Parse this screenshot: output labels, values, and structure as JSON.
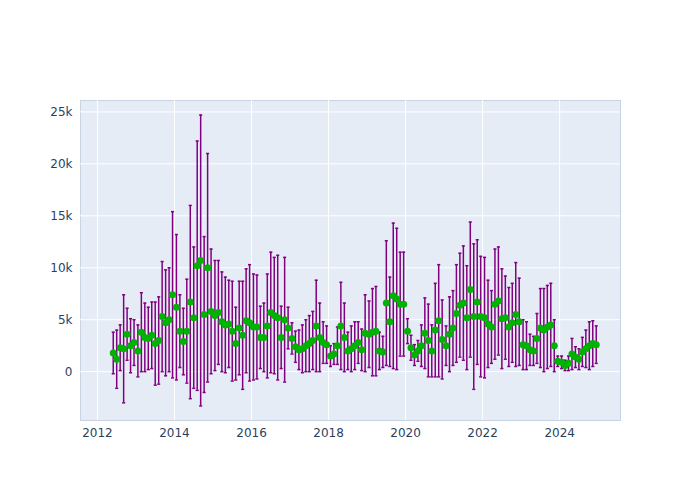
{
  "chart_data": {
    "type": "scatter",
    "xlim": [
      2011.56,
      2025.58
    ],
    "xticks": [
      2012,
      2014,
      2016,
      2018,
      2020,
      2022,
      2024
    ],
    "ylim": [
      -4700,
      26100
    ],
    "yticks": [
      0,
      {
        "value": 5000,
        "label": "5k"
      },
      {
        "value": 10000,
        "label": "10k"
      },
      {
        "value": 15000,
        "label": "15k"
      },
      {
        "value": 20000,
        "label": "20k"
      },
      {
        "value": 25000,
        "label": "25k"
      }
    ],
    "grid": true,
    "series": [
      {
        "color": "#00b300",
        "marker": "circle",
        "x": [
          2012.41,
          2012.5,
          2012.59,
          2012.68,
          2012.77,
          2012.86,
          2012.95,
          2013.05,
          2013.14,
          2013.23,
          2013.32,
          2013.41,
          2013.5,
          2013.59,
          2013.68,
          2013.77,
          2013.86,
          2013.95,
          2014.05,
          2014.14,
          2014.23,
          2014.32,
          2014.41,
          2014.5,
          2014.59,
          2014.68,
          2014.77,
          2014.86,
          2014.95,
          2015.05,
          2015.14,
          2015.23,
          2015.32,
          2015.41,
          2015.5,
          2015.59,
          2015.68,
          2015.77,
          2015.86,
          2015.95,
          2016.05,
          2016.14,
          2016.23,
          2016.32,
          2016.41,
          2016.5,
          2016.59,
          2016.68,
          2016.77,
          2016.86,
          2016.95,
          2017.05,
          2017.14,
          2017.23,
          2017.32,
          2017.41,
          2017.5,
          2017.59,
          2017.68,
          2017.77,
          2017.86,
          2017.95,
          2018.05,
          2018.14,
          2018.23,
          2018.32,
          2018.41,
          2018.5,
          2018.59,
          2018.68,
          2018.77,
          2018.86,
          2018.95,
          2019.05,
          2019.14,
          2019.23,
          2019.32,
          2019.41,
          2019.5,
          2019.59,
          2019.68,
          2019.77,
          2019.86,
          2019.95,
          2020.05,
          2020.14,
          2020.23,
          2020.32,
          2020.41,
          2020.5,
          2020.59,
          2020.68,
          2020.77,
          2020.86,
          2020.95,
          2021.05,
          2021.14,
          2021.23,
          2021.32,
          2021.41,
          2021.5,
          2021.59,
          2021.68,
          2021.77,
          2021.86,
          2021.95,
          2022.05,
          2022.14,
          2022.23,
          2022.32,
          2022.41,
          2022.5,
          2022.59,
          2022.68,
          2022.77,
          2022.86,
          2022.95,
          2023.05,
          2023.14,
          2023.23,
          2023.32,
          2023.41,
          2023.5,
          2023.59,
          2023.68,
          2023.77,
          2023.86,
          2023.95,
          2024.05,
          2024.14,
          2024.23,
          2024.32,
          2024.41,
          2024.5,
          2024.59,
          2024.68,
          2024.77,
          2024.86,
          2024.95
        ],
        "values": [
          1800,
          1200,
          2300,
          2200,
          3600,
          2500,
          2800,
          2000,
          3800,
          3300,
          3200,
          3500,
          2700,
          3000,
          5300,
          4700,
          5000,
          7400,
          6200,
          3900,
          2900,
          3900,
          6700,
          5200,
          10200,
          10700,
          5500,
          10000,
          5800,
          5400,
          5700,
          4800,
          4500,
          4600,
          3900,
          2700,
          4200,
          3500,
          4900,
          4700,
          4300,
          4300,
          3300,
          3300,
          4400,
          5700,
          5400,
          5200,
          3300,
          5000,
          4200,
          3200,
          2400,
          2100,
          2200,
          2500,
          2700,
          3000,
          4400,
          3300,
          2800,
          2600,
          1500,
          1700,
          2500,
          4400,
          3300,
          2000,
          2200,
          2500,
          2800,
          2100,
          3700,
          3600,
          3800,
          3900,
          2000,
          1900,
          6600,
          4800,
          7300,
          7000,
          6500,
          6500,
          3900,
          2300,
          1600,
          2000,
          2500,
          3700,
          3000,
          2000,
          4000,
          4900,
          3100,
          2500,
          3600,
          4200,
          5600,
          6400,
          6600,
          5200,
          7900,
          5300,
          6700,
          5300,
          5200,
          4600,
          4300,
          6500,
          6800,
          5100,
          5200,
          4300,
          4700,
          5500,
          4800,
          2600,
          2500,
          2100,
          2000,
          3200,
          4200,
          4000,
          4300,
          4500,
          2500,
          1000,
          900,
          600,
          800,
          1700,
          1400,
          1200,
          1900,
          2200,
          2500,
          2700,
          2600
        ],
        "errors": [
          2000,
          2800,
          2200,
          5200,
          2500,
          2600,
          2200,
          2500,
          3800,
          3300,
          3000,
          3200,
          4000,
          4200,
          5300,
          5100,
          5000,
          8000,
          7000,
          3500,
          3200,
          5000,
          9300,
          6800,
          12000,
          14000,
          7500,
          11000,
          6000,
          5300,
          5000,
          4800,
          4600,
          4200,
          4800,
          3500,
          4500,
          5200,
          5000,
          5600,
          5100,
          5000,
          3000,
          3300,
          5000,
          5800,
          5600,
          6000,
          3000,
          6000,
          2000,
          1500,
          1500,
          1900,
          2300,
          2500,
          2700,
          2800,
          4400,
          3300,
          2000,
          1800,
          1000,
          1000,
          1800,
          4200,
          3300,
          1800,
          2200,
          2300,
          2000,
          2000,
          3700,
          3200,
          4200,
          4300,
          1800,
          1500,
          6000,
          4300,
          7000,
          6800,
          5000,
          5000,
          1200,
          1200,
          1000,
          1000,
          2000,
          3400,
          3500,
          2500,
          4500,
          5400,
          3800,
          1900,
          3600,
          3600,
          4700,
          5000,
          5500,
          5000,
          6500,
          7000,
          6000,
          5800,
          5800,
          4200,
          3500,
          5300,
          5200,
          4800,
          4000,
          3800,
          3800,
          5000,
          4200,
          2400,
          2300,
          1500,
          1400,
          2400,
          3800,
          4000,
          4000,
          4000,
          2500,
          500,
          600,
          500,
          700,
          1500,
          1000,
          1000,
          1400,
          1800,
          2300,
          2200,
          1800
        ]
      }
    ]
  }
}
